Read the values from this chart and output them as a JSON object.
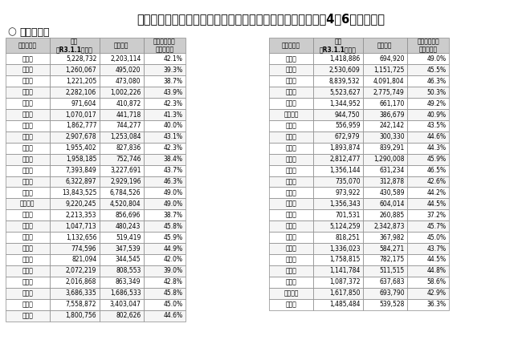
{
  "title": "マイナンバーカードの市区町村別交付枚数等について（令和4年6月末時点）",
  "subtitle": "都道府県別",
  "col_headers": [
    "都道府県名",
    "人口\n（R3.1.1時点）",
    "交付枚数",
    "人口に対する\n交付枚数率"
  ],
  "left_data": [
    [
      "北海道",
      "5,228,732",
      "2,203,114",
      "42.1%"
    ],
    [
      "青森県",
      "1,260,067",
      "495,020",
      "39.3%"
    ],
    [
      "岩手県",
      "1,221,205",
      "473,080",
      "38.7%"
    ],
    [
      "宮城県",
      "2,282,106",
      "1,002,226",
      "43.9%"
    ],
    [
      "秋田県",
      "971,604",
      "410,872",
      "42.3%"
    ],
    [
      "山形県",
      "1,070,017",
      "441,718",
      "41.3%"
    ],
    [
      "福島県",
      "1,862,777",
      "744,277",
      "40.0%"
    ],
    [
      "茨城県",
      "2,907,678",
      "1,253,084",
      "43.1%"
    ],
    [
      "栃木県",
      "1,955,402",
      "827,836",
      "42.3%"
    ],
    [
      "群馬県",
      "1,958,185",
      "752,746",
      "38.4%"
    ],
    [
      "埼玉県",
      "7,393,849",
      "3,227,691",
      "43.7%"
    ],
    [
      "千葉県",
      "6,322,897",
      "2,929,196",
      "46.3%"
    ],
    [
      "東京都",
      "13,843,525",
      "6,784,526",
      "49.0%"
    ],
    [
      "神奈川県",
      "9,220,245",
      "4,520,804",
      "49.0%"
    ],
    [
      "新潟県",
      "2,213,353",
      "856,696",
      "38.7%"
    ],
    [
      "富山県",
      "1,047,713",
      "480,243",
      "45.8%"
    ],
    [
      "石川県",
      "1,132,656",
      "519,419",
      "45.9%"
    ],
    [
      "福井県",
      "774,596",
      "347,539",
      "44.9%"
    ],
    [
      "山梨県",
      "821,094",
      "344,545",
      "42.0%"
    ],
    [
      "長野県",
      "2,072,219",
      "808,553",
      "39.0%"
    ],
    [
      "岐阜県",
      "2,016,868",
      "863,349",
      "42.8%"
    ],
    [
      "静岡県",
      "3,686,335",
      "1,686,533",
      "45.8%"
    ],
    [
      "愛知県",
      "7,558,872",
      "3,403,047",
      "45.0%"
    ],
    [
      "三重県",
      "1,800,756",
      "802,626",
      "44.6%"
    ]
  ],
  "right_data": [
    [
      "滋賀県",
      "1,418,886",
      "694,920",
      "49.0%"
    ],
    [
      "京都府",
      "2,530,609",
      "1,151,725",
      "45.5%"
    ],
    [
      "大阪府",
      "8,839,532",
      "4,091,804",
      "46.3%"
    ],
    [
      "兵庫県",
      "5,523,627",
      "2,775,749",
      "50.3%"
    ],
    [
      "奈良県",
      "1,344,952",
      "661,170",
      "49.2%"
    ],
    [
      "和歌山県",
      "944,750",
      "386,679",
      "40.9%"
    ],
    [
      "鳥取県",
      "556,959",
      "242,142",
      "43.5%"
    ],
    [
      "島根県",
      "672,979",
      "300,330",
      "44.6%"
    ],
    [
      "岡山県",
      "1,893,874",
      "839,291",
      "44.3%"
    ],
    [
      "広島県",
      "2,812,477",
      "1,290,008",
      "45.9%"
    ],
    [
      "山口県",
      "1,356,144",
      "631,234",
      "46.5%"
    ],
    [
      "徳島県",
      "735,070",
      "312,878",
      "42.6%"
    ],
    [
      "香川県",
      "973,922",
      "430,589",
      "44.2%"
    ],
    [
      "愛媛県",
      "1,356,343",
      "604,014",
      "44.5%"
    ],
    [
      "高知県",
      "701,531",
      "260,885",
      "37.2%"
    ],
    [
      "福岡県",
      "5,124,259",
      "2,342,873",
      "45.7%"
    ],
    [
      "佐賀県",
      "818,251",
      "367,982",
      "45.0%"
    ],
    [
      "長崎県",
      "1,336,023",
      "584,271",
      "43.7%"
    ],
    [
      "熊本県",
      "1,758,815",
      "782,175",
      "44.5%"
    ],
    [
      "大分県",
      "1,141,784",
      "511,515",
      "44.8%"
    ],
    [
      "宮崎県",
      "1,087,372",
      "637,683",
      "58.6%"
    ],
    [
      "鹿児島県",
      "1,617,850",
      "693,790",
      "42.9%"
    ],
    [
      "沖縄県",
      "1,485,484",
      "539,528",
      "36.3%"
    ]
  ],
  "header_bg": "#d0d0d0",
  "row_bg_odd": "#ffffff",
  "row_bg_even": "#f5f5f5",
  "border_color": "#888888",
  "text_color": "#000000",
  "title_color": "#000000",
  "subtitle_color": "#000000"
}
